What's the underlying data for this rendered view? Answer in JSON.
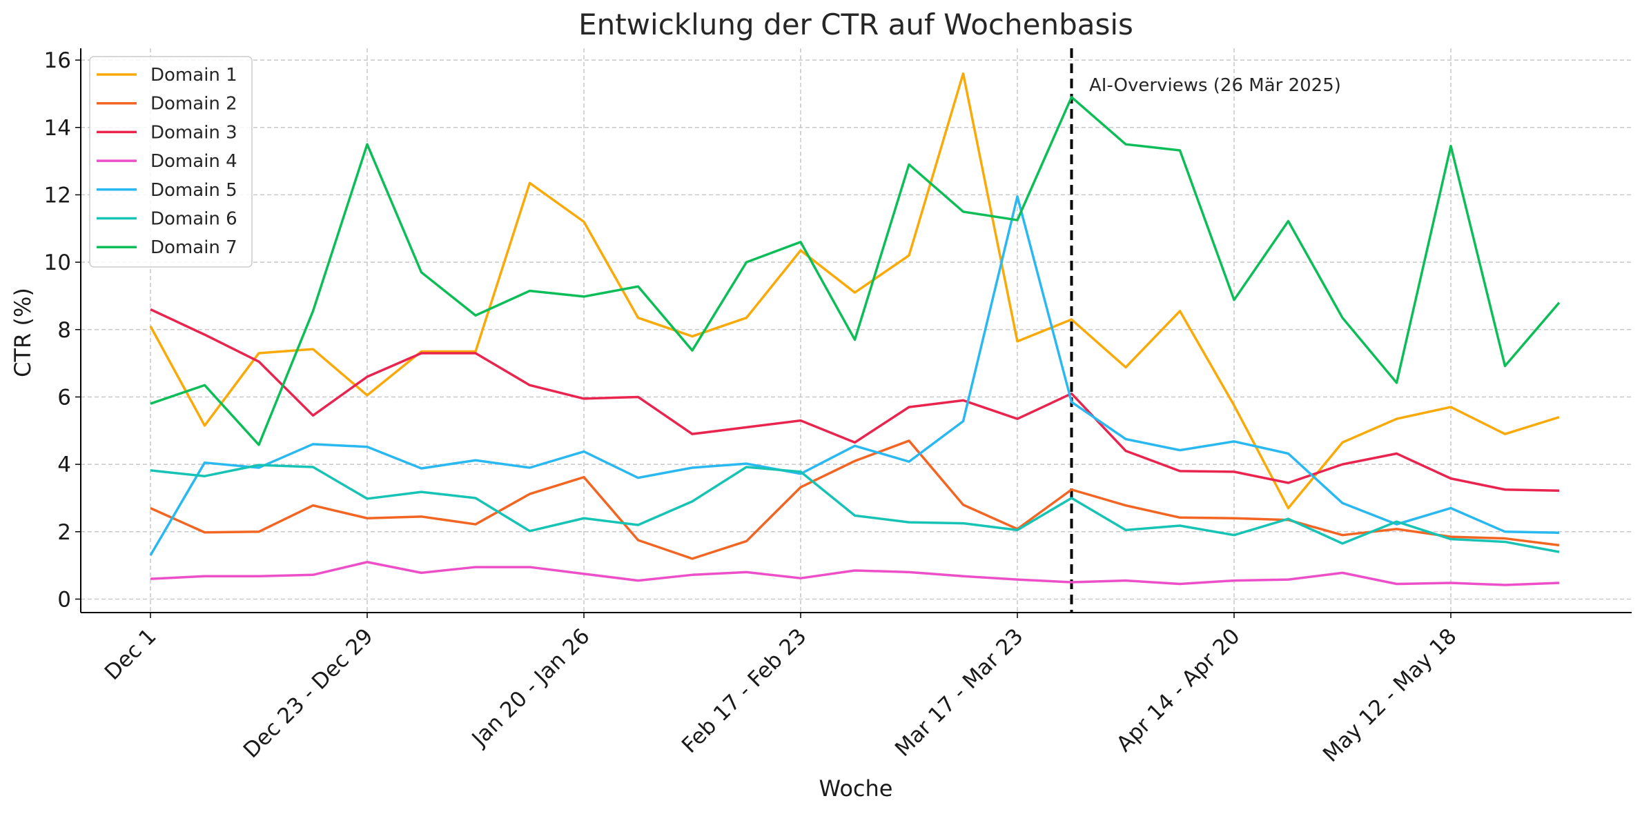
{
  "chart_data": {
    "type": "line",
    "title": "Entwicklung der CTR auf Wochenbasis",
    "xlabel": "Woche",
    "ylabel": "CTR (%)",
    "ylim": [
      -0.4,
      16.35
    ],
    "yticks": [
      0,
      2,
      4,
      6,
      8,
      10,
      12,
      14,
      16
    ],
    "grid": true,
    "legend_position": "top-left",
    "x_tick_labels": [
      "Dec 1",
      "Dec 23 - Dec 29",
      "Jan 20 - Jan 26",
      "Feb 17 - Feb 23",
      "Mar 17 - Mar 23",
      "Apr 14 - Apr 20",
      "May 12 - May 18"
    ],
    "x_tick_positions": [
      0,
      4,
      8,
      12,
      16,
      20,
      24
    ],
    "x": [
      0,
      1,
      2,
      3,
      4,
      5,
      6,
      7,
      8,
      9,
      10,
      11,
      12,
      13,
      14,
      15,
      16,
      17,
      18,
      19,
      20,
      21,
      22,
      23,
      24,
      25,
      26
    ],
    "vline": {
      "x": 17,
      "label": "AI-Overviews (26 Mär 2025)"
    },
    "series": [
      {
        "name": "Domain 1",
        "color": "#f9aa09",
        "values": [
          8.1,
          5.15,
          7.3,
          7.42,
          6.05,
          7.35,
          7.35,
          12.35,
          11.2,
          8.35,
          7.8,
          8.35,
          10.35,
          9.1,
          10.2,
          15.6,
          7.65,
          8.3,
          6.88,
          8.55,
          5.75,
          2.7,
          4.65,
          5.35,
          5.7,
          4.9,
          5.4
        ]
      },
      {
        "name": "Domain 2",
        "color": "#f26522",
        "values": [
          2.7,
          1.98,
          2.0,
          2.78,
          2.4,
          2.45,
          2.22,
          3.12,
          3.62,
          1.75,
          1.2,
          1.72,
          3.32,
          4.1,
          4.7,
          2.8,
          2.08,
          3.25,
          2.78,
          2.42,
          2.4,
          2.35,
          1.9,
          2.08,
          1.85,
          1.8,
          1.6
        ]
      },
      {
        "name": "Domain 3",
        "color": "#e8244f",
        "values": [
          8.6,
          7.85,
          7.05,
          5.45,
          6.6,
          7.3,
          7.3,
          6.35,
          5.95,
          6.0,
          4.9,
          5.1,
          5.3,
          4.65,
          5.7,
          5.9,
          5.35,
          6.1,
          4.4,
          3.8,
          3.78,
          3.45,
          4.0,
          4.32,
          3.58,
          3.25,
          3.22
        ]
      },
      {
        "name": "Domain 4",
        "color": "#ed4fc9",
        "values": [
          0.6,
          0.68,
          0.68,
          0.72,
          1.1,
          0.78,
          0.95,
          0.95,
          0.75,
          0.55,
          0.72,
          0.8,
          0.62,
          0.85,
          0.8,
          0.68,
          0.58,
          0.5,
          0.55,
          0.45,
          0.55,
          0.58,
          0.78,
          0.45,
          0.48,
          0.42,
          0.48
        ]
      },
      {
        "name": "Domain 5",
        "color": "#2ab8f0",
        "values": [
          1.3,
          4.05,
          3.9,
          4.6,
          4.52,
          3.88,
          4.12,
          3.9,
          4.38,
          3.6,
          3.9,
          4.02,
          3.72,
          4.55,
          4.08,
          5.28,
          11.95,
          5.85,
          4.75,
          4.42,
          4.68,
          4.32,
          2.85,
          2.22,
          2.7,
          2.0,
          1.97
        ]
      },
      {
        "name": "Domain 6",
        "color": "#17c3b5",
        "values": [
          3.82,
          3.65,
          3.98,
          3.92,
          2.98,
          3.18,
          3.0,
          2.02,
          2.4,
          2.2,
          2.9,
          3.92,
          3.78,
          2.48,
          2.28,
          2.25,
          2.05,
          3.0,
          2.05,
          2.18,
          1.9,
          2.38,
          1.65,
          2.3,
          1.78,
          1.7,
          1.4
        ]
      },
      {
        "name": "Domain 7",
        "color": "#0dbd58",
        "values": [
          5.8,
          6.35,
          4.58,
          8.55,
          13.5,
          9.7,
          8.42,
          9.15,
          8.98,
          9.28,
          7.38,
          10.0,
          10.6,
          7.7,
          12.9,
          11.5,
          11.25,
          14.9,
          13.5,
          13.32,
          8.88,
          11.22,
          8.35,
          6.42,
          13.45,
          6.92,
          8.8
        ]
      }
    ]
  }
}
